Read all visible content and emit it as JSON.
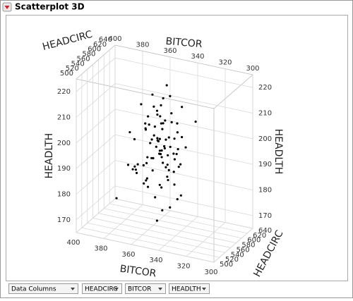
{
  "window": {
    "title": "Scatterplot 3D"
  },
  "chart_data": {
    "type": "scatter3d",
    "xlabel": "BITCOR",
    "ylabel": "HEADLTH",
    "zlabel": "HEADCIRC",
    "xlim": [
      400,
      300
    ],
    "xticks": [
      300,
      320,
      340,
      360,
      380,
      400
    ],
    "ylim": [
      165,
      225
    ],
    "yticks": [
      170,
      180,
      190,
      200,
      210,
      220
    ],
    "zlim": [
      500,
      640
    ],
    "zticks": [
      500,
      520,
      540,
      560,
      580,
      600,
      620,
      640
    ],
    "grid": true,
    "color": "#000000",
    "x": [
      352,
      360,
      345,
      371,
      338,
      356,
      349,
      364,
      342,
      358,
      367,
      351,
      333,
      362,
      355,
      347,
      376,
      340,
      359,
      353,
      344,
      366,
      350,
      357,
      336,
      361,
      348,
      369,
      354,
      343,
      363,
      339,
      357,
      350,
      372,
      346,
      358,
      352,
      341,
      365,
      355,
      348,
      360,
      337,
      353,
      368,
      344,
      356,
      349,
      362,
      351,
      374,
      343,
      359,
      335,
      357,
      346,
      364,
      352,
      340,
      361,
      354,
      347,
      370,
      356,
      342,
      358,
      350,
      366,
      345,
      353,
      331,
      360,
      348,
      357,
      379,
      344,
      355,
      363,
      339,
      352,
      367,
      349,
      358,
      346,
      361,
      354,
      341,
      356,
      350
    ],
    "y": [
      196,
      203,
      188,
      210,
      192,
      199,
      185,
      207,
      194,
      201,
      190,
      215,
      183,
      197,
      205,
      191,
      200,
      178,
      209,
      195,
      187,
      202,
      198,
      213,
      181,
      193,
      206,
      189,
      200,
      196,
      204,
      186,
      211,
      192,
      198,
      176,
      208,
      195,
      190,
      202,
      218,
      184,
      199,
      193,
      206,
      188,
      201,
      197,
      172,
      210,
      194,
      189,
      203,
      186,
      199,
      207,
      192,
      214,
      180,
      198,
      191,
      205,
      195,
      188,
      200,
      212,
      183,
      197,
      204,
      190,
      196,
      208,
      185,
      201,
      193,
      177,
      206,
      199,
      190,
      202,
      195,
      187,
      209,
      193,
      198,
      184,
      203,
      196,
      189,
      200
    ],
    "z": [
      570,
      585,
      555,
      590,
      562,
      575,
      548,
      580,
      567,
      572,
      558,
      595,
      545,
      578,
      583,
      560,
      574,
      540,
      588,
      566,
      553,
      581,
      569,
      600,
      547,
      563,
      586,
      557,
      573,
      568,
      579,
      551,
      592,
      564,
      571,
      542,
      584,
      566,
      559,
      577,
      603,
      549,
      574,
      563,
      587,
      556,
      576,
      570,
      538,
      591,
      565,
      558,
      582,
      552,
      572,
      589,
      561,
      596,
      546,
      569,
      560,
      585,
      567,
      555,
      574,
      593,
      550,
      571,
      580,
      561,
      568,
      588,
      553,
      576,
      564,
      541,
      586,
      573,
      559,
      578,
      566,
      554,
      590,
      563,
      571,
      550,
      582,
      569,
      557,
      575
    ]
  },
  "controls": [
    "Data Columns",
    "HEADCIRC",
    "BITCOR",
    "HEADLTH"
  ]
}
